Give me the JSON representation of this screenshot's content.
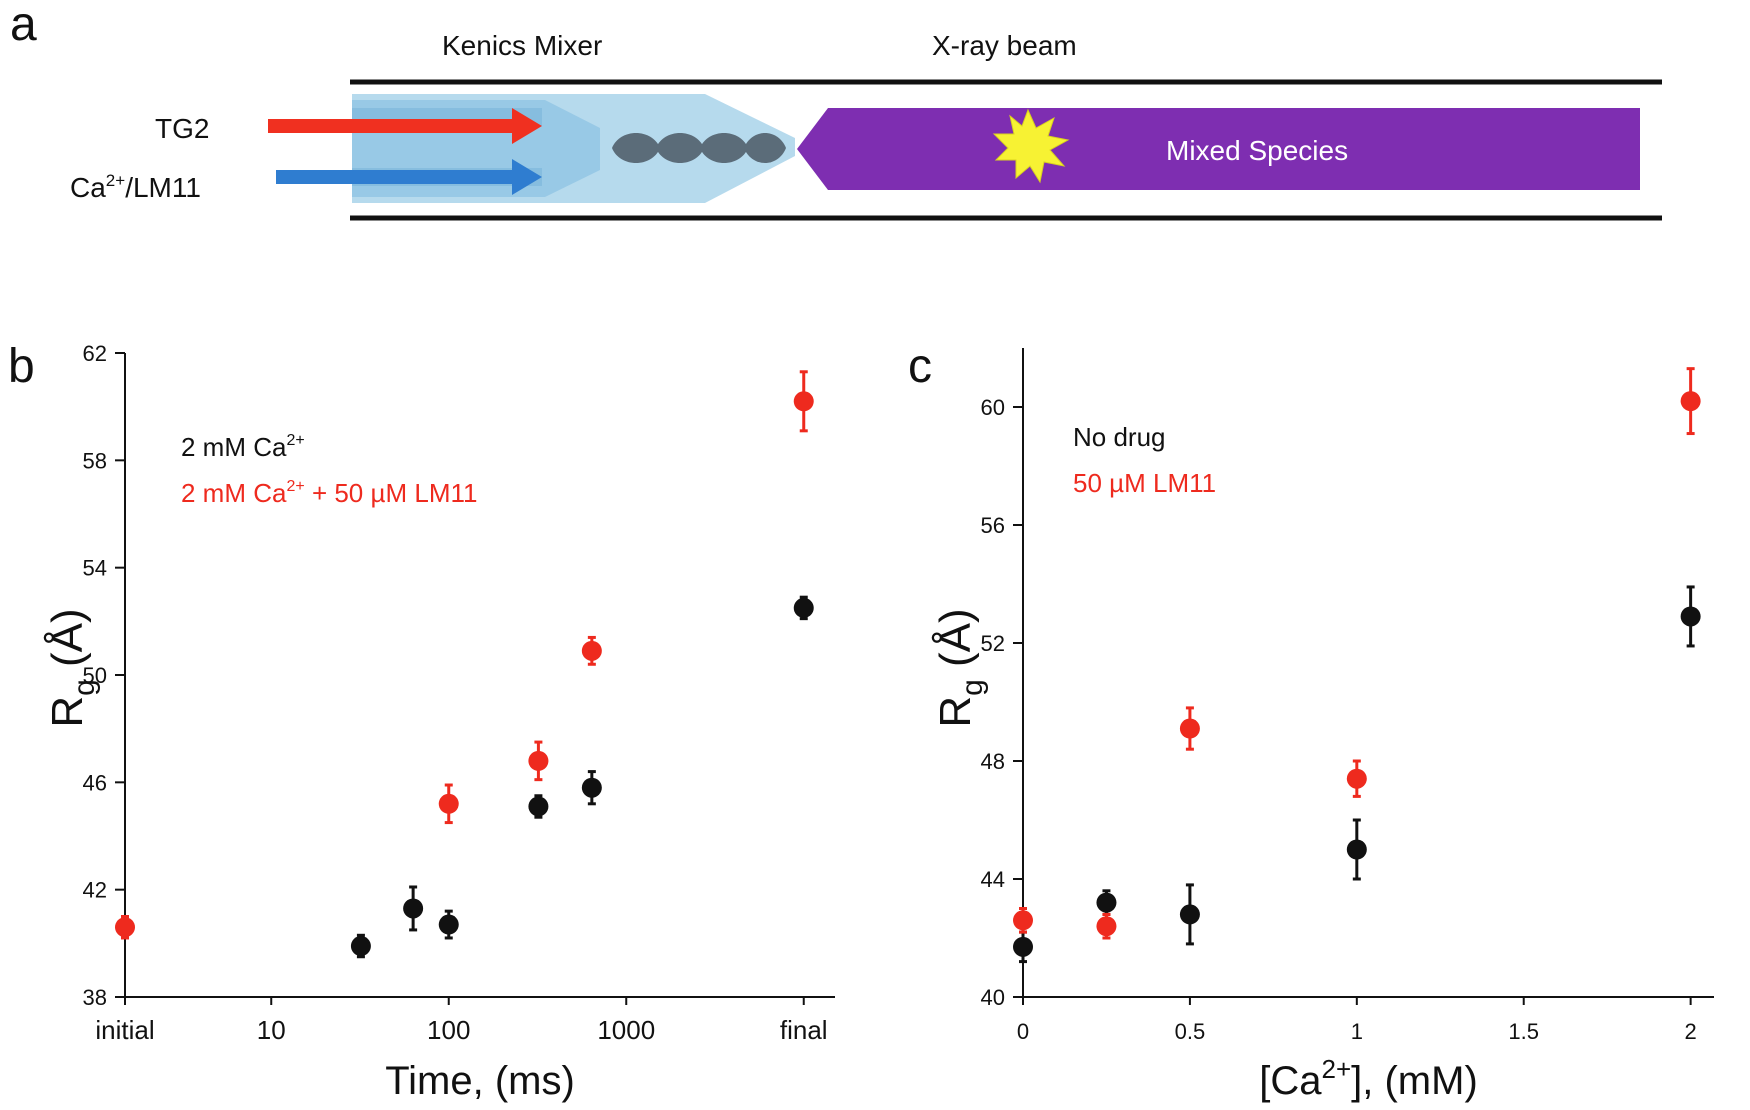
{
  "colors": {
    "red": "#ee2a1e",
    "black": "#111111",
    "purple": "#7e2eb1",
    "flash": "#f7f233",
    "mixer_body": "#a9d3ea",
    "blue_arrow": "#2f7dd0",
    "red_arrow": "#f03020"
  },
  "diagram": {
    "panel_letter": "a",
    "mixer_label": "Kenics Mixer",
    "beam_label": "X-ray beam",
    "input1_label": "TG2",
    "input2_label": "Ca",
    "input2_sup": "2+",
    "input2_suffix": "/LM11",
    "output_label": "Mixed Species"
  },
  "chart_data": [
    {
      "type": "scatter",
      "panel_letter": "b",
      "xlabel": "Time, (ms)",
      "ylabel_main": "R",
      "ylabel_sub": "g",
      "ylabel_rest": " (Å)",
      "x_scale": "log",
      "xlim": [
        1.5,
        15000
      ],
      "ylim": [
        38,
        62
      ],
      "yticks": [
        38,
        42,
        46,
        50,
        54,
        58,
        62
      ],
      "xticks": [
        {
          "value": 1.5,
          "label": "initial"
        },
        {
          "value": 10,
          "label": "10"
        },
        {
          "value": 100,
          "label": "100"
        },
        {
          "value": 1000,
          "label": "1000"
        },
        {
          "value": 10000,
          "label": "final"
        }
      ],
      "legend": {
        "position": "top-left",
        "entries": [
          {
            "label": "2 mM Ca",
            "sup": "2+",
            "suffix": "",
            "color": "#111111"
          },
          {
            "label": "2 mM Ca",
            "sup": "2+",
            "suffix": " + 50 µM LM11",
            "color": "#ee2a1e"
          }
        ]
      },
      "series": [
        {
          "color": "#111111",
          "points": [
            {
              "x": 32,
              "y": 39.9,
              "err": 0.4
            },
            {
              "x": 63,
              "y": 41.3,
              "err": 0.8
            },
            {
              "x": 100,
              "y": 40.7,
              "err": 0.5
            },
            {
              "x": 320,
              "y": 45.1,
              "err": 0.4
            },
            {
              "x": 640,
              "y": 45.8,
              "err": 0.6
            },
            {
              "x": 10000,
              "y": 52.5,
              "err": 0.4
            }
          ]
        },
        {
          "color": "#ee2a1e",
          "points": [
            {
              "x": 1.5,
              "y": 40.6,
              "err": 0.4
            },
            {
              "x": 100,
              "y": 45.2,
              "err": 0.7
            },
            {
              "x": 320,
              "y": 46.8,
              "err": 0.7
            },
            {
              "x": 640,
              "y": 50.9,
              "err": 0.5
            },
            {
              "x": 10000,
              "y": 60.2,
              "err": 1.1
            }
          ]
        }
      ]
    },
    {
      "type": "scatter",
      "panel_letter": "c",
      "xlabel_main": "[Ca",
      "xlabel_sup": "2+",
      "xlabel_rest": "], (mM)",
      "ylabel_main": "R",
      "ylabel_sub": "g",
      "ylabel_rest": " (Å)",
      "x_scale": "linear",
      "xlim": [
        0,
        2.07
      ],
      "ylim": [
        40,
        62
      ],
      "yticks": [
        40,
        44,
        48,
        52,
        56,
        60
      ],
      "xticks": [
        {
          "value": 0,
          "label": "0"
        },
        {
          "value": 0.5,
          "label": "0.5"
        },
        {
          "value": 1,
          "label": "1"
        },
        {
          "value": 1.5,
          "label": "1.5"
        },
        {
          "value": 2,
          "label": "2"
        }
      ],
      "legend": {
        "position": "top-left",
        "entries": [
          {
            "label": "No drug",
            "color": "#111111"
          },
          {
            "label": "50 µM LM11",
            "color": "#ee2a1e"
          }
        ]
      },
      "series": [
        {
          "color": "#111111",
          "points": [
            {
              "x": 0,
              "y": 41.7,
              "err": 0.5
            },
            {
              "x": 0.25,
              "y": 43.2,
              "err": 0.4
            },
            {
              "x": 0.5,
              "y": 42.8,
              "err": 1.0
            },
            {
              "x": 1,
              "y": 45.0,
              "err": 1.0
            },
            {
              "x": 2,
              "y": 52.9,
              "err": 1.0
            }
          ]
        },
        {
          "color": "#ee2a1e",
          "points": [
            {
              "x": 0,
              "y": 42.6,
              "err": 0.4
            },
            {
              "x": 0.25,
              "y": 42.4,
              "err": 0.4
            },
            {
              "x": 0.5,
              "y": 49.1,
              "err": 0.7
            },
            {
              "x": 1,
              "y": 47.4,
              "err": 0.6
            },
            {
              "x": 2,
              "y": 60.2,
              "err": 1.1
            }
          ]
        }
      ]
    }
  ]
}
